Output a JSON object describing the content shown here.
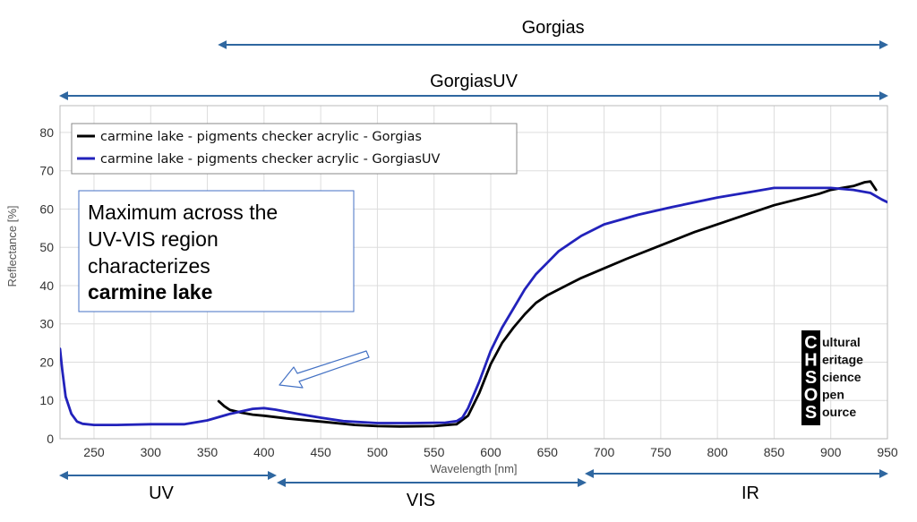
{
  "chart_data": {
    "type": "line",
    "xlabel": "Wavelength [nm]",
    "ylabel": "Reflectance [%]",
    "xlim": [
      220,
      950
    ],
    "ylim": [
      0,
      87
    ],
    "x_ticks": [
      250,
      300,
      350,
      400,
      450,
      500,
      550,
      600,
      650,
      700,
      750,
      800,
      850,
      900,
      950
    ],
    "y_ticks": [
      0,
      10,
      20,
      30,
      40,
      50,
      60,
      70,
      80
    ],
    "grid": true,
    "legend_position": "top-left",
    "series": [
      {
        "name": "carmine lake - pigments checker acrylic - Gorgias",
        "color": "#000000",
        "x": [
          360,
          365,
          370,
          380,
          390,
          400,
          420,
          450,
          480,
          500,
          520,
          550,
          570,
          580,
          590,
          600,
          610,
          620,
          630,
          640,
          650,
          660,
          670,
          680,
          700,
          720,
          750,
          780,
          800,
          830,
          850,
          870,
          890,
          900,
          910,
          920,
          930,
          935,
          940
        ],
        "y": [
          9.8,
          8.5,
          7.5,
          6.8,
          6.3,
          6.0,
          5.3,
          4.5,
          3.6,
          3.3,
          3.2,
          3.3,
          3.8,
          6.0,
          12.0,
          19.5,
          25.0,
          29.0,
          32.5,
          35.5,
          37.5,
          39.0,
          40.5,
          42.0,
          44.5,
          47.0,
          50.5,
          54.0,
          56.0,
          59.0,
          61.0,
          62.5,
          64.0,
          65.0,
          65.5,
          66.0,
          67.0,
          67.2,
          65.0
        ]
      },
      {
        "name": "carmine lake - pigments checker acrylic - GorgiasUV",
        "color": "#2222bb",
        "x": [
          220,
          222,
          225,
          230,
          235,
          240,
          250,
          270,
          300,
          330,
          350,
          370,
          390,
          400,
          410,
          430,
          450,
          470,
          500,
          530,
          560,
          570,
          575,
          580,
          590,
          600,
          610,
          620,
          630,
          640,
          650,
          660,
          680,
          700,
          730,
          760,
          800,
          830,
          850,
          870,
          900,
          920,
          935,
          945,
          950
        ],
        "y": [
          23.5,
          18.0,
          11.0,
          6.5,
          4.5,
          3.9,
          3.6,
          3.6,
          3.8,
          3.8,
          4.8,
          6.5,
          7.8,
          8.0,
          7.6,
          6.5,
          5.5,
          4.6,
          4.1,
          4.1,
          4.2,
          4.6,
          5.5,
          8.0,
          15.0,
          23.0,
          29.0,
          34.0,
          39.0,
          43.0,
          46.0,
          49.0,
          53.0,
          56.0,
          58.5,
          60.5,
          63.0,
          64.5,
          65.5,
          65.5,
          65.5,
          65.0,
          64.2,
          62.5,
          61.8
        ]
      }
    ]
  },
  "ranges": {
    "gorgias": {
      "label": "Gorgias",
      "from": 360,
      "to": 950
    },
    "gorgias_uv": {
      "label": "GorgiasUV",
      "from": 220,
      "to": 950
    },
    "uv": {
      "label": "UV",
      "from": 220,
      "to": 400
    },
    "vis": {
      "label": "VIS",
      "from": 400,
      "to": 700
    },
    "ir": {
      "label": "IR",
      "from": 700,
      "to": 950
    }
  },
  "annotation": {
    "line1": "Maximum across the",
    "line2": "UV-VIS region",
    "line3": "characterizes",
    "line4": "carmine lake"
  },
  "logo": {
    "letters": [
      "C",
      "H",
      "S",
      "O",
      "S"
    ],
    "words": [
      "ultural",
      "eritage",
      "cience",
      "pen",
      "ource"
    ]
  },
  "colors": {
    "arrow": "#2f67a0",
    "grid": "#dddddd",
    "annotation_border": "#4472c4",
    "legend_border": "#888888"
  }
}
